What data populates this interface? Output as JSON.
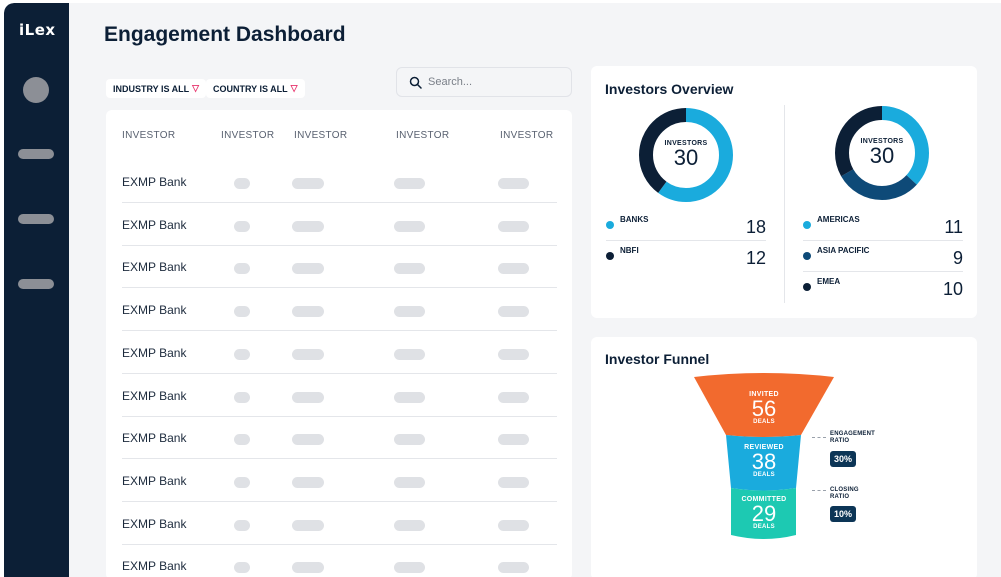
{
  "app": {
    "logo": "iLex"
  },
  "page": {
    "title": "Engagement Dashboard"
  },
  "filters": [
    {
      "label": "INDUSTRY IS ALL"
    },
    {
      "label": "COUNTRY IS ALL"
    }
  ],
  "search": {
    "placeholder": "Search..."
  },
  "table": {
    "headers": [
      "INVESTOR",
      "INVESTOR",
      "INVESTOR",
      "INVESTOR",
      "INVESTOR"
    ],
    "rows": [
      "EXMP Bank",
      "EXMP Bank",
      "EXMP Bank",
      "EXMP Bank",
      "EXMP Bank",
      "EXMP Bank",
      "EXMP Bank",
      "EXMP Bank",
      "EXMP Bank",
      "EXMP Bank"
    ]
  },
  "overview": {
    "title": "Investors Overview",
    "left": {
      "center_label": "INVESTORS",
      "center_value": "30",
      "legend": [
        {
          "label": "BANKS",
          "value": "18",
          "color": "#1aabdd"
        },
        {
          "label": "NBFI",
          "value": "12",
          "color": "#0c1f36"
        }
      ]
    },
    "right": {
      "center_label": "INVESTORS",
      "center_value": "30",
      "legend": [
        {
          "label": "AMERICAS",
          "value": "11",
          "color": "#1aabdd"
        },
        {
          "label": "ASIA PACIFIC",
          "value": "9",
          "color": "#0e4a78"
        },
        {
          "label": "EMEA",
          "value": "10",
          "color": "#0c1f36"
        }
      ]
    }
  },
  "funnel": {
    "title": "Investor Funnel",
    "stages": [
      {
        "top": "INVITED",
        "value": "56",
        "bottom": "DEALS",
        "color": "#f26a2e"
      },
      {
        "top": "REVIEWED",
        "value": "38",
        "bottom": "DEALS",
        "color": "#1aabdd"
      },
      {
        "top": "COMMITTED",
        "value": "29",
        "bottom": "DEALS",
        "color": "#1dc9b2"
      }
    ],
    "ratios": [
      {
        "label_line1": "ENGAGEMENT",
        "label_line2": "RATIO",
        "value": "30%"
      },
      {
        "label_line1": "CLOSING",
        "label_line2": "RATIO",
        "value": "10%"
      }
    ]
  },
  "colors": {
    "navy": "#0c1f36",
    "accent": "#1aabdd",
    "orange": "#f26a2e",
    "teal": "#1dc9b2"
  }
}
